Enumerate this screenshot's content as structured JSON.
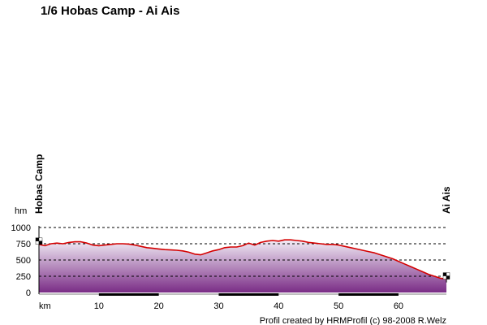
{
  "chart_data": {
    "type": "area",
    "title": "1/6 Hobas Camp - Ai Ais",
    "ylabel": "hm",
    "xlabel": "km",
    "xlim": [
      0,
      68
    ],
    "ylim": [
      0,
      1000
    ],
    "yticks": [
      0,
      250,
      500,
      750,
      1000
    ],
    "xticks": [
      10,
      20,
      30,
      40,
      50,
      60
    ],
    "xtick_labels": [
      "10",
      "20",
      "30",
      "40",
      "50",
      "60"
    ],
    "ytick_labels": [
      "0",
      "250",
      "500",
      "750",
      "1000"
    ],
    "grid": "horizontal dashed",
    "colors": {
      "line": "#d40000",
      "fill_top": "#f3eef6",
      "fill_bottom": "#7a2c86",
      "axis_band": "#000000"
    },
    "waypoints": [
      {
        "name": "Hobas Camp",
        "km": 0
      },
      {
        "name": "Ai Ais",
        "km": 68
      }
    ],
    "series": [
      {
        "x": [
          0,
          1,
          2,
          3,
          4,
          5,
          6,
          7,
          8,
          9,
          10,
          11,
          12,
          13,
          14,
          15,
          16,
          17,
          18,
          19,
          20,
          21,
          22,
          23,
          24,
          25,
          26,
          27,
          28,
          29,
          30,
          31,
          32,
          33,
          34,
          35,
          36,
          37,
          38,
          39,
          40,
          41,
          42,
          43,
          44,
          45,
          46,
          47,
          48,
          49,
          50,
          51,
          52,
          53,
          54,
          55,
          56,
          57,
          58,
          59,
          60,
          61,
          62,
          63,
          64,
          65,
          66,
          67,
          68
        ],
        "values": [
          740,
          720,
          750,
          760,
          750,
          770,
          780,
          780,
          760,
          730,
          720,
          730,
          740,
          750,
          750,
          745,
          730,
          710,
          690,
          680,
          670,
          660,
          655,
          650,
          640,
          620,
          590,
          580,
          610,
          640,
          660,
          690,
          700,
          700,
          720,
          760,
          730,
          770,
          790,
          800,
          790,
          810,
          810,
          800,
          790,
          770,
          760,
          750,
          740,
          740,
          730,
          710,
          690,
          670,
          650,
          630,
          610,
          580,
          550,
          520,
          480,
          440,
          400,
          360,
          320,
          280,
          250,
          220,
          205
        ]
      }
    ],
    "credit": "Profil created by HRMProfil (c) 98-2008 R.Welz"
  }
}
